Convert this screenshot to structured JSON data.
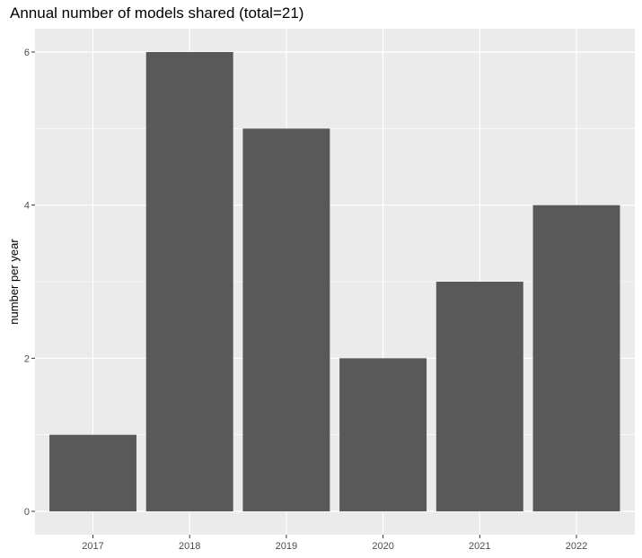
{
  "chart_data": {
    "type": "bar",
    "title": "Annual number of models shared (total=21)",
    "xlabel": "",
    "ylabel": "number per year",
    "categories": [
      "2017",
      "2018",
      "2019",
      "2020",
      "2021",
      "2022"
    ],
    "values": [
      1,
      6,
      5,
      2,
      3,
      4
    ],
    "ylim": [
      0,
      6
    ],
    "yticks": [
      0,
      2,
      4,
      6
    ],
    "grid": true,
    "legend": "none",
    "colors": {
      "bar": "#595959",
      "panel": "#ebebeb",
      "grid": "#ffffff"
    }
  }
}
